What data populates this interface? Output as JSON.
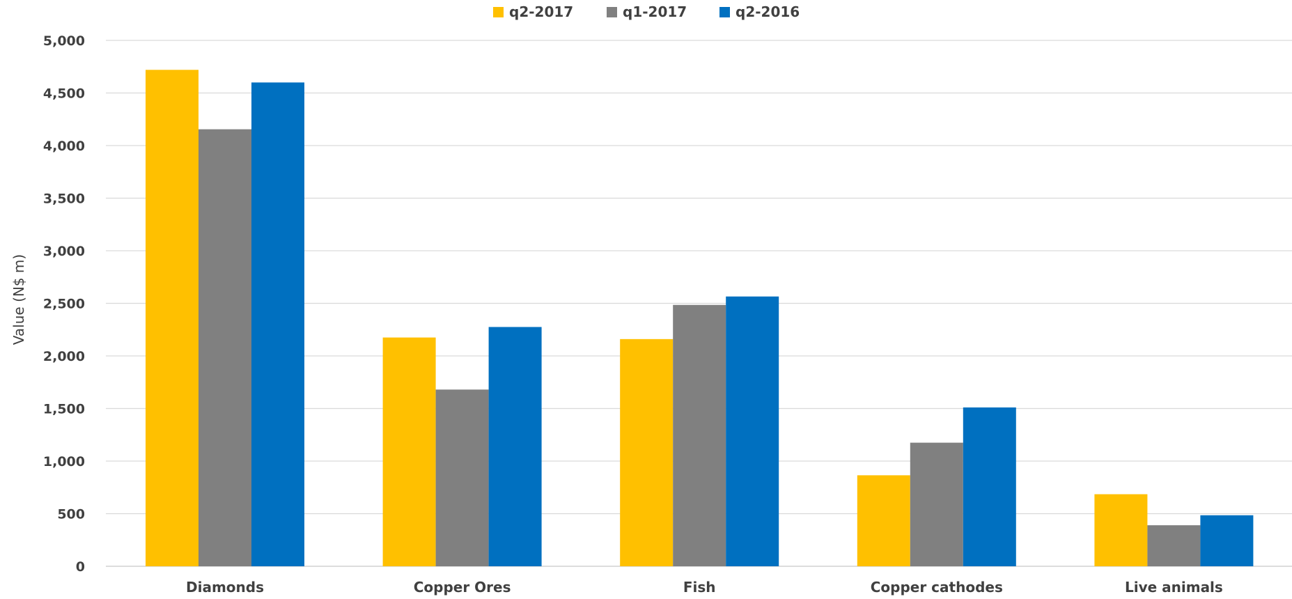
{
  "chart_data": {
    "type": "bar",
    "title": "",
    "xlabel": "",
    "ylabel": "Value (N$ m)",
    "categories": [
      "Diamonds",
      "Copper Ores",
      "Fish",
      "Copper cathodes",
      "Live animals"
    ],
    "series": [
      {
        "name": "q2-2017",
        "color": "#FFC000",
        "values": [
          4720,
          2175,
          2160,
          865,
          685
        ]
      },
      {
        "name": "q1-2017",
        "color": "#808080",
        "values": [
          4155,
          1680,
          2485,
          1175,
          390
        ]
      },
      {
        "name": "q2-2016",
        "color": "#0070C0",
        "values": [
          4600,
          2275,
          2565,
          1510,
          485
        ]
      }
    ],
    "ylim": [
      0,
      5000
    ],
    "yticks": [
      0,
      500,
      1000,
      1500,
      2000,
      2500,
      3000,
      3500,
      4000,
      4500,
      5000
    ],
    "ytick_labels": [
      "0",
      "500",
      "1,000",
      "1,500",
      "2,000",
      "2,500",
      "3,000",
      "3,500",
      "4,000",
      "4,500",
      "5,000"
    ],
    "grid": true,
    "legend_position": "top-center"
  }
}
